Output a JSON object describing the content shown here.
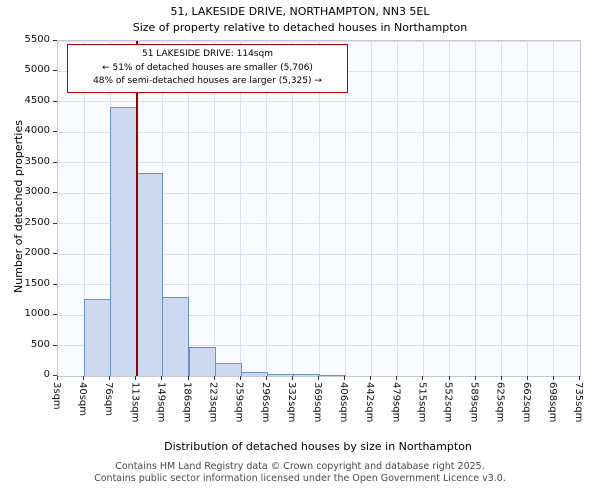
{
  "title": "51, LAKESIDE DRIVE, NORTHAMPTON, NN3 5EL",
  "subtitle": "Size of property relative to detached houses in Northampton",
  "annotation": {
    "line1": "51 LAKESIDE DRIVE: 114sqm",
    "line2": "← 51% of detached houses are smaller (5,706)",
    "line3": "48% of semi-detached houses are larger (5,325) →"
  },
  "footer": {
    "line1": "Contains HM Land Registry data © Crown copyright and database right 2025.",
    "line2": "Contains public sector information licensed under the Open Government Licence v3.0."
  },
  "chart_data": {
    "type": "bar",
    "title": "51, LAKESIDE DRIVE, NORTHAMPTON, NN3 5EL — Size of property relative to detached houses in Northampton",
    "xlabel": "Distribution of detached houses by size in Northampton",
    "ylabel": "Number of detached properties",
    "ylim": [
      0,
      5500
    ],
    "ytick_step": 500,
    "x_tick_labels": [
      "3sqm",
      "40sqm",
      "76sqm",
      "113sqm",
      "149sqm",
      "186sqm",
      "223sqm",
      "259sqm",
      "296sqm",
      "332sqm",
      "369sqm",
      "406sqm",
      "442sqm",
      "479sqm",
      "515sqm",
      "552sqm",
      "589sqm",
      "625sqm",
      "662sqm",
      "698sqm",
      "735sqm"
    ],
    "bin_edges_sqm": [
      3,
      40,
      76,
      113,
      149,
      186,
      223,
      259,
      296,
      332,
      369,
      406,
      442,
      479,
      515,
      552,
      589,
      625,
      662,
      698,
      735
    ],
    "values": [
      0,
      1270,
      4420,
      3330,
      1290,
      480,
      220,
      70,
      40,
      25,
      15,
      0,
      0,
      0,
      0,
      0,
      0,
      0,
      0,
      0
    ],
    "marker_value_sqm": 114,
    "grid": true,
    "legend": "none",
    "colors": {
      "bar_fill": "#ccd9f0",
      "bar_border": "#6a92c8",
      "marker_line": "#990000",
      "annotation_border": "#bb0000",
      "grid_line": "#d9e1f2"
    }
  }
}
